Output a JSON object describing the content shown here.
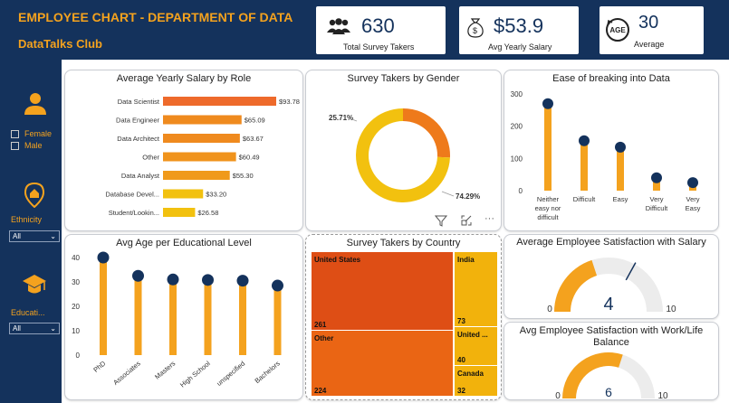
{
  "header": {
    "title": "EMPLOYEE CHART - DEPARTMENT OF DATA",
    "subtitle": "DataTalks Club"
  },
  "kpis": [
    {
      "value": "630",
      "label": "Total Survey Takers",
      "icon": "people-icon"
    },
    {
      "value": "$53.9",
      "label": "Avg Yearly Salary",
      "icon": "money-bag-icon"
    },
    {
      "value": "30",
      "label": "Average",
      "icon": "age-icon",
      "icon_text": "AGE"
    }
  ],
  "slicers": {
    "gender": [
      "Female",
      "Male"
    ],
    "ethnicity": {
      "label": "Ethnicity",
      "value": "All"
    },
    "education": {
      "label": "Educati...",
      "value": "All"
    }
  },
  "colors": {
    "navy": "#14325c",
    "orange": "#f4a21e",
    "deep_orange": "#ee7a1b",
    "red_orange": "#e2521a",
    "yellow": "#f2c10f",
    "dot": "#14325c",
    "gauge_bg": "#ececec"
  },
  "chart_data": [
    {
      "type": "bar",
      "orientation": "horizontal",
      "title": "Average Yearly Salary by Role",
      "categories": [
        "Data Scientist",
        "Data Engineer",
        "Data Architect",
        "Other",
        "Data Analyst",
        "Database Devel...",
        "Student/Lookin..."
      ],
      "values": [
        93.78,
        65.09,
        63.67,
        60.49,
        55.3,
        33.2,
        26.58
      ],
      "data_labels": [
        "$93.78",
        "$65.09",
        "$63.67",
        "$60.49",
        "$55.30",
        "$33.20",
        "$26.58"
      ]
    },
    {
      "type": "pie",
      "style": "donut",
      "title": "Survey Takers by Gender",
      "values": [
        25.71,
        74.29
      ],
      "data_labels": [
        "25.71%",
        "74.29%"
      ],
      "colors": [
        "#ee7a1b",
        "#f2c10f"
      ]
    },
    {
      "type": "bar",
      "style": "lollipop",
      "title": "Ease of breaking into Data",
      "categories": [
        "Neither easy nor difficult",
        "Difficult",
        "Easy",
        "Very Difficult",
        "Very Easy"
      ],
      "tick_labels": [
        [
          "Neither",
          "easy nor",
          "difficult"
        ],
        [
          "Difficult"
        ],
        [
          "Easy"
        ],
        [
          "Very",
          "Difficult"
        ],
        [
          "Very",
          "Easy"
        ]
      ],
      "values": [
        270,
        155,
        135,
        40,
        25
      ],
      "ylim": [
        0,
        300
      ],
      "yticks": [
        0,
        100,
        200,
        300
      ]
    },
    {
      "type": "bar",
      "style": "lollipop",
      "title": "Avg Age per Educational Level",
      "categories": [
        "PhD",
        "Associates",
        "Masters",
        "High School",
        "unspecified",
        "Bachelors"
      ],
      "values": [
        40,
        32.5,
        31,
        30.8,
        30.5,
        28.5
      ],
      "ylim": [
        0,
        40
      ],
      "yticks": [
        0,
        10,
        20,
        30,
        40
      ]
    },
    {
      "type": "heatmap",
      "style": "treemap",
      "title": "Survey Takers by Country",
      "categories": [
        "United States",
        "Other",
        "India",
        "United ...",
        "Canada"
      ],
      "values": [
        261,
        224,
        73,
        40,
        32
      ]
    },
    {
      "type": "gauge",
      "title": "Average Employee Satisfaction with Salary",
      "value": 4,
      "min": 0,
      "max": 10,
      "target": 6.6
    },
    {
      "type": "gauge",
      "title": "Avg Employee Satisfaction with Work/Life Balance",
      "value": 6,
      "min": 0,
      "max": 10
    }
  ],
  "toolbar": {
    "icons": [
      "filter-icon",
      "focus-mode-icon",
      "more-options-icon"
    ],
    "more_label": "···"
  }
}
